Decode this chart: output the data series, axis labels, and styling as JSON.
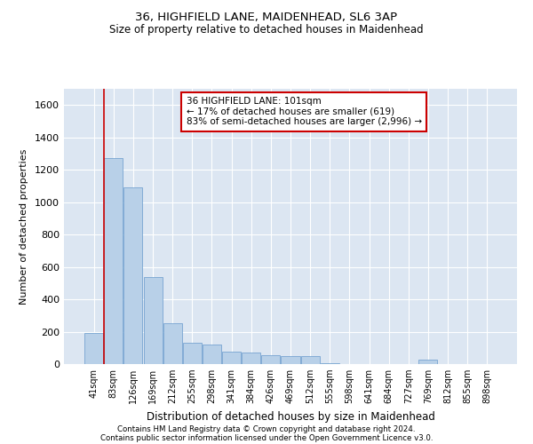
{
  "title1": "36, HIGHFIELD LANE, MAIDENHEAD, SL6 3AP",
  "title2": "Size of property relative to detached houses in Maidenhead",
  "xlabel": "Distribution of detached houses by size in Maidenhead",
  "ylabel": "Number of detached properties",
  "bar_color": "#b8d0e8",
  "bar_edge_color": "#6699cc",
  "background_color": "#dce6f2",
  "categories": [
    "41sqm",
    "83sqm",
    "126sqm",
    "169sqm",
    "212sqm",
    "255sqm",
    "298sqm",
    "341sqm",
    "384sqm",
    "426sqm",
    "469sqm",
    "512sqm",
    "555sqm",
    "598sqm",
    "641sqm",
    "684sqm",
    "727sqm",
    "769sqm",
    "812sqm",
    "855sqm",
    "898sqm"
  ],
  "values": [
    190,
    1270,
    1090,
    540,
    250,
    130,
    120,
    75,
    70,
    55,
    50,
    50,
    5,
    0,
    0,
    0,
    0,
    30,
    0,
    0,
    0
  ],
  "ylim": [
    0,
    1700
  ],
  "yticks": [
    0,
    200,
    400,
    600,
    800,
    1000,
    1200,
    1400,
    1600
  ],
  "vline_x_index": 1,
  "vline_color": "#cc0000",
  "annotation_text": "36 HIGHFIELD LANE: 101sqm\n← 17% of detached houses are smaller (619)\n83% of semi-detached houses are larger (2,996) →",
  "annotation_box_color": "#ffffff",
  "annotation_box_edge": "#cc0000",
  "footer1": "Contains HM Land Registry data © Crown copyright and database right 2024.",
  "footer2": "Contains public sector information licensed under the Open Government Licence v3.0."
}
